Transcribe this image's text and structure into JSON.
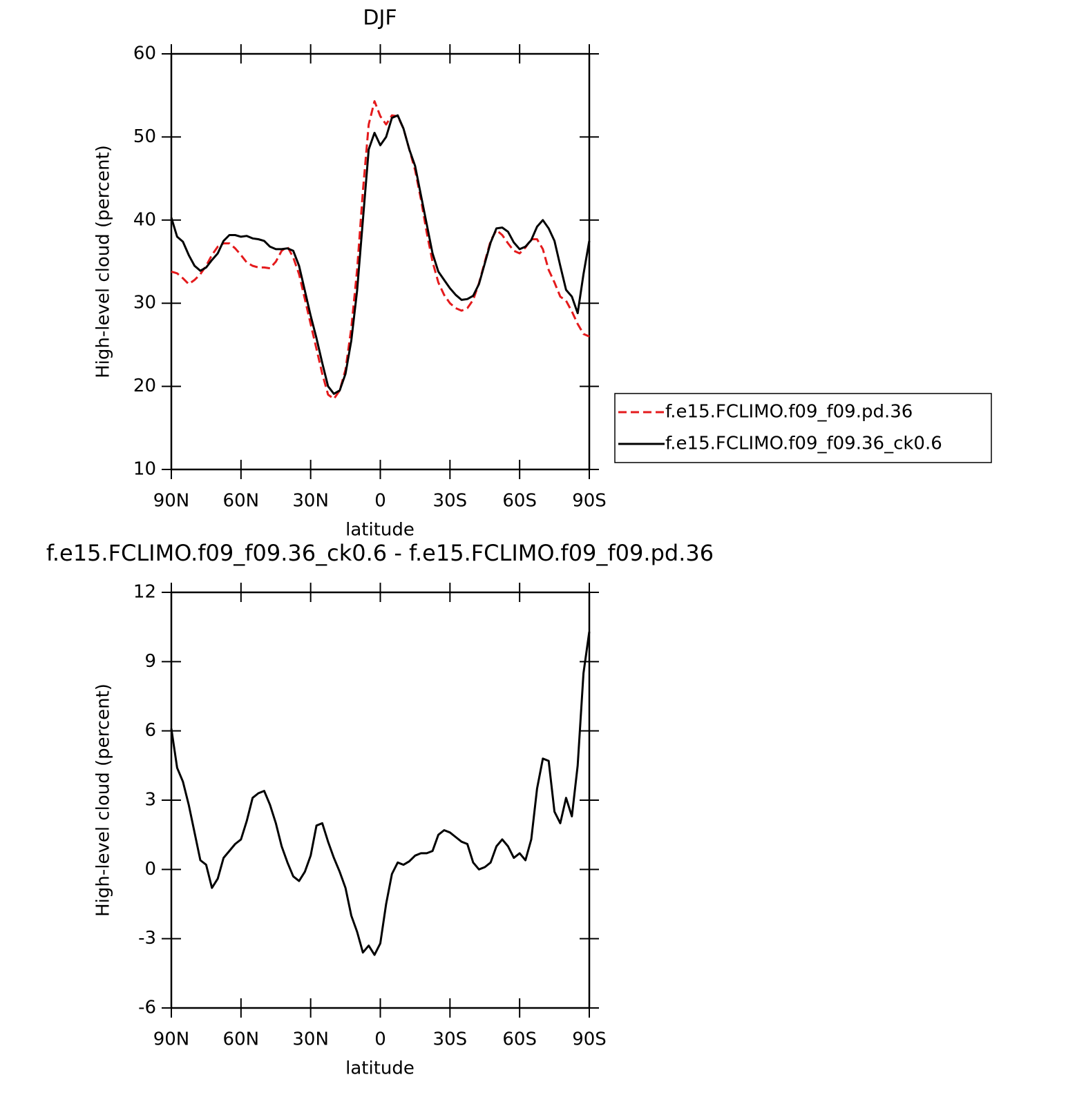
{
  "chart_data": [
    {
      "type": "line",
      "title": "DJF",
      "xlabel": "latitude",
      "ylabel": "High-level cloud (percent)",
      "x": [
        90,
        87.5,
        85,
        82.5,
        80,
        77.5,
        75,
        72.5,
        70,
        67.5,
        65,
        62.5,
        60,
        57.5,
        55,
        52.5,
        50,
        47.5,
        45,
        42.5,
        40,
        37.5,
        35,
        32.5,
        30,
        27.5,
        25,
        22.5,
        20,
        17.5,
        15,
        12.5,
        10,
        7.5,
        5,
        2.5,
        0,
        -2.5,
        -5,
        -7.5,
        -10,
        -12.5,
        -15,
        -17.5,
        -20,
        -22.5,
        -25,
        -27.5,
        -30,
        -32.5,
        -35,
        -37.5,
        -40,
        -42.5,
        -45,
        -47.5,
        -50,
        -52.5,
        -55,
        -57.5,
        -60,
        -62.5,
        -65,
        -67.5,
        -70,
        -72.5,
        -75,
        -77.5,
        -80,
        -82.5,
        -85,
        -87.5,
        -90
      ],
      "xlim": [
        90,
        -90
      ],
      "xticks": [
        {
          "value": 90,
          "label": "90N"
        },
        {
          "value": 60,
          "label": "60N"
        },
        {
          "value": 30,
          "label": "30N"
        },
        0,
        {
          "value": -30,
          "label": "30S"
        },
        {
          "value": -60,
          "label": "60S"
        },
        {
          "value": -90,
          "label": "90S"
        }
      ],
      "ylim": [
        10,
        60
      ],
      "yticks": [
        10,
        20,
        30,
        40,
        50,
        60
      ],
      "legend": "right",
      "series": [
        {
          "name": "f.e15.FCLIMO.f09_f09.pd.36",
          "color": "#e41a1c",
          "dash": true,
          "values": [
            33.8,
            33.6,
            33.0,
            32.3,
            32.8,
            33.5,
            34.5,
            35.8,
            36.8,
            37.2,
            37.2,
            36.6,
            35.8,
            34.9,
            34.5,
            34.3,
            34.3,
            34.2,
            35.0,
            36.3,
            36.8,
            35.5,
            33.5,
            30.5,
            27.5,
            24.5,
            21.5,
            19.0,
            18.5,
            19.5,
            22.0,
            27.0,
            34.0,
            43.5,
            51.5,
            54.3,
            52.5,
            51.5,
            52.6,
            52.5,
            51.0,
            48.5,
            46.0,
            42.5,
            38.5,
            35.0,
            32.5,
            31.0,
            30.0,
            29.4,
            29.1,
            29.4,
            30.4,
            32.4,
            35.0,
            37.5,
            38.8,
            38.2,
            37.2,
            36.3,
            36.0,
            36.7,
            37.7,
            37.7,
            36.5,
            34.0,
            32.5,
            30.8,
            30.3,
            29.0,
            27.5,
            26.3,
            26.0
          ]
        },
        {
          "name": "f.e15.FCLIMO.f09_f09.36_ck0.6",
          "color": "#000000",
          "dash": false,
          "values": [
            40.3,
            38.0,
            37.4,
            35.8,
            34.5,
            33.9,
            34.3,
            35.2,
            36.0,
            37.5,
            38.2,
            38.2,
            38.0,
            38.1,
            37.8,
            37.7,
            37.5,
            36.8,
            36.5,
            36.5,
            36.6,
            36.3,
            34.5,
            31.5,
            28.5,
            25.8,
            22.8,
            20.0,
            19.1,
            19.5,
            21.5,
            25.5,
            31.5,
            40.0,
            48.5,
            50.5,
            49.0,
            50.0,
            52.3,
            52.6,
            51.0,
            48.5,
            46.5,
            43.0,
            39.5,
            36.0,
            33.8,
            32.8,
            31.8,
            31.0,
            30.4,
            30.5,
            30.9,
            32.3,
            34.8,
            37.3,
            39.0,
            39.1,
            38.6,
            37.3,
            36.5,
            36.8,
            37.6,
            39.2,
            40.0,
            39.0,
            37.5,
            34.5,
            31.6,
            30.8,
            28.8,
            33.5,
            37.5
          ]
        }
      ]
    },
    {
      "type": "line",
      "title": "f.e15.FCLIMO.f09_f09.36_ck0.6 - f.e15.FCLIMO.f09_f09.pd.36",
      "xlabel": "latitude",
      "ylabel": "High-level cloud (percent)",
      "x": [
        90,
        87.5,
        85,
        82.5,
        80,
        77.5,
        75,
        72.5,
        70,
        67.5,
        65,
        62.5,
        60,
        57.5,
        55,
        52.5,
        50,
        47.5,
        45,
        42.5,
        40,
        37.5,
        35,
        32.5,
        30,
        27.5,
        25,
        22.5,
        20,
        17.5,
        15,
        12.5,
        10,
        7.5,
        5,
        2.5,
        0,
        -2.5,
        -5,
        -7.5,
        -10,
        -12.5,
        -15,
        -17.5,
        -20,
        -22.5,
        -25,
        -27.5,
        -30,
        -32.5,
        -35,
        -37.5,
        -40,
        -42.5,
        -45,
        -47.5,
        -50,
        -52.5,
        -55,
        -57.5,
        -60,
        -62.5,
        -65,
        -67.5,
        -70,
        -72.5,
        -75,
        -77.5,
        -80,
        -82.5,
        -85,
        -87.5,
        -90
      ],
      "xlim": [
        90,
        -90
      ],
      "xticks": [
        {
          "value": 90,
          "label": "90N"
        },
        {
          "value": 60,
          "label": "60N"
        },
        {
          "value": 30,
          "label": "30N"
        },
        0,
        {
          "value": -30,
          "label": "30S"
        },
        {
          "value": -60,
          "label": "60S"
        },
        {
          "value": -90,
          "label": "90S"
        }
      ],
      "ylim": [
        -6,
        12
      ],
      "yticks": [
        -6,
        -3,
        0,
        3,
        6,
        9,
        12
      ],
      "series": [
        {
          "color": "#000000",
          "dash": false,
          "values": [
            6.1,
            4.4,
            3.8,
            2.8,
            1.6,
            0.4,
            0.2,
            -0.8,
            -0.4,
            0.5,
            0.8,
            1.1,
            1.3,
            2.1,
            3.1,
            3.3,
            3.4,
            2.8,
            2.0,
            1.0,
            0.3,
            -0.3,
            -0.5,
            -0.1,
            0.6,
            1.9,
            2.0,
            1.2,
            0.5,
            -0.1,
            -0.8,
            -2.0,
            -2.7,
            -3.6,
            -3.3,
            -3.7,
            -3.2,
            -1.5,
            -0.2,
            0.3,
            0.2,
            0.35,
            0.6,
            0.7,
            0.7,
            0.8,
            1.5,
            1.7,
            1.6,
            1.4,
            1.2,
            1.1,
            0.3,
            0.0,
            0.1,
            0.3,
            1.0,
            1.3,
            1.0,
            0.5,
            0.7,
            0.4,
            1.3,
            3.5,
            4.8,
            4.7,
            2.5,
            2.0,
            3.1,
            2.3,
            4.5,
            8.5,
            10.3
          ]
        }
      ]
    }
  ]
}
